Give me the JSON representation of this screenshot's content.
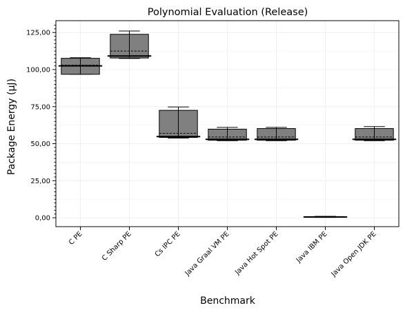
{
  "chart_data": {
    "type": "box",
    "title": "Polynomial Evaluation (Release)",
    "xlabel": "Benchmark",
    "ylabel": "Package Energy (µJ)",
    "ylim": [
      -6,
      133
    ],
    "yticks": [
      0,
      25,
      50,
      75,
      100,
      125
    ],
    "ytick_labels": [
      "0,00",
      "25,00",
      "50,00",
      "75,00",
      "100,00",
      "125,00"
    ],
    "grid": true,
    "categories": [
      "C PE",
      "C Sharp PE",
      "Cs IPC PE",
      "Java Graal VM PE",
      "Java Hot Spot PE",
      "Java IBM PE",
      "Java Open JDK PE"
    ],
    "boxes": [
      {
        "whisker_low": 96.8,
        "q1": 96.8,
        "median": 102.5,
        "mean": 103.0,
        "q3": 107.6,
        "whisker_high": 108.0
      },
      {
        "whisker_low": 107.5,
        "q1": 107.8,
        "median": 109.2,
        "mean": 112.5,
        "q3": 123.8,
        "whisker_high": 126.0
      },
      {
        "whisker_low": 53.8,
        "q1": 54.2,
        "median": 54.8,
        "mean": 57.0,
        "q3": 72.5,
        "whisker_high": 74.8
      },
      {
        "whisker_low": 52.0,
        "q1": 52.3,
        "median": 52.9,
        "mean": 54.5,
        "q3": 59.8,
        "whisker_high": 61.0
      },
      {
        "whisker_low": 52.0,
        "q1": 52.3,
        "median": 52.9,
        "mean": 54.5,
        "q3": 60.2,
        "whisker_high": 61.0
      },
      {
        "whisker_low": 0.2,
        "q1": 0.3,
        "median": 0.5,
        "mean": 0.6,
        "q3": 0.8,
        "whisker_high": 1.0
      },
      {
        "whisker_low": 52.0,
        "q1": 52.3,
        "median": 52.9,
        "mean": 54.5,
        "q3": 60.2,
        "whisker_high": 61.5
      }
    ],
    "box_fill": "#808080"
  }
}
